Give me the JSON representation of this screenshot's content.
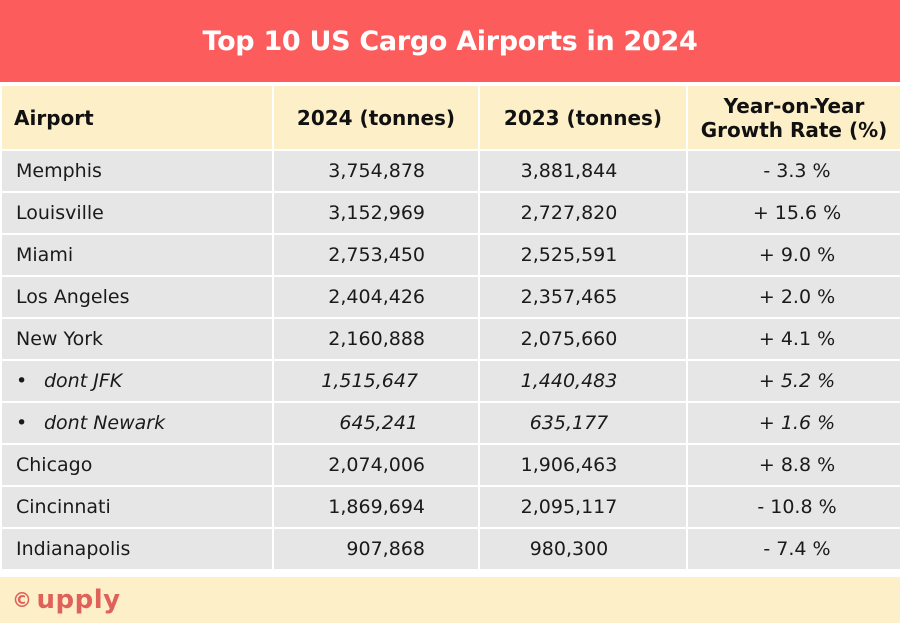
{
  "title": "Top 10 US Cargo Airports in 2024",
  "colors": {
    "title_band": "#fd5c5c",
    "header_band": "#fdf0c9",
    "row_bg": "#e6e6e6",
    "logo": "#e0605a"
  },
  "table": {
    "headers": [
      "Airport",
      "2024 (tonnes)",
      "2023 (tonnes)",
      "Year-on-Year Growth Rate (%)"
    ],
    "header_growth_line1": "Year-on-Year",
    "header_growth_line2": "Growth Rate (%)",
    "rows": [
      {
        "airport": "Memphis",
        "t2024": "3,754,878",
        "t2023": "3,881,844",
        "growth": "- 3.3 %",
        "sub": false
      },
      {
        "airport": "Louisville",
        "t2024": "3,152,969",
        "t2023": "2,727,820",
        "growth": "+ 15.6 %",
        "sub": false
      },
      {
        "airport": "Miami",
        "t2024": "2,753,450",
        "t2023": "2,525,591",
        "growth": "+ 9.0 %",
        "sub": false
      },
      {
        "airport": "Los Angeles",
        "t2024": "2,404,426",
        "t2023": "2,357,465",
        "growth": "+ 2.0 %",
        "sub": false
      },
      {
        "airport": "New York",
        "t2024": "2,160,888",
        "t2023": "2,075,660",
        "growth": "+ 4.1 %",
        "sub": false
      },
      {
        "airport": "dont JFK",
        "t2024": "1,515,647",
        "t2023": "1,440,483",
        "growth": "+ 5.2 %",
        "sub": true
      },
      {
        "airport": "dont Newark",
        "t2024": "645,241",
        "t2023": "635,177",
        "growth": "+ 1.6 %",
        "sub": true
      },
      {
        "airport": "Chicago",
        "t2024": "2,074,006",
        "t2023": "1,906,463",
        "growth": "+ 8.8 %",
        "sub": false
      },
      {
        "airport": "Cincinnati",
        "t2024": "1,869,694",
        "t2023": "2,095,117",
        "growth": "- 10.8 %",
        "sub": false
      },
      {
        "airport": "Indianapolis",
        "t2024": "907,868",
        "t2023": "980,300",
        "growth": "- 7.4 %",
        "sub": false
      }
    ]
  },
  "footer": {
    "copyright_symbol": "©",
    "brand": "upply"
  },
  "bullet": "•"
}
